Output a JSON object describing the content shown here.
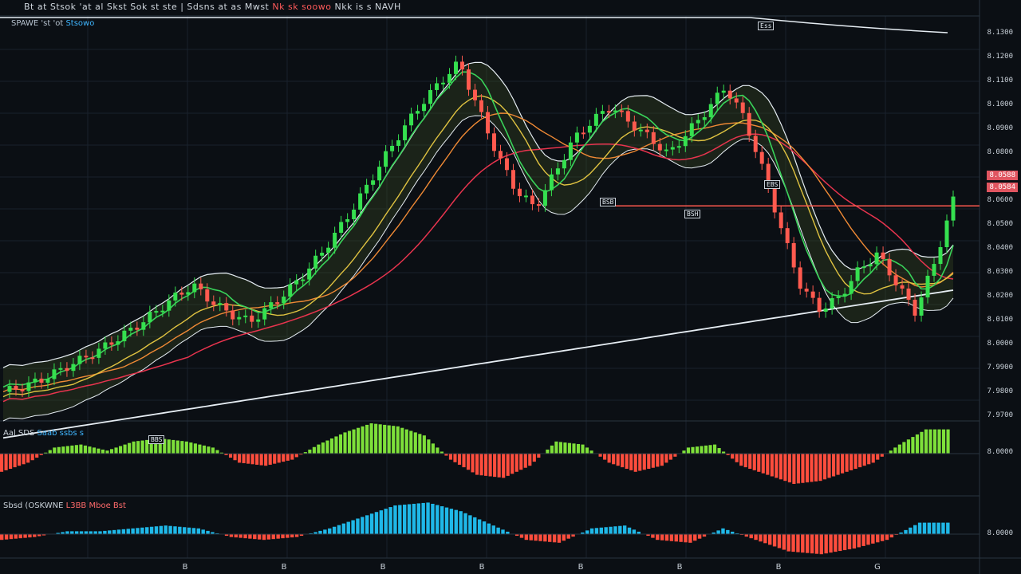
{
  "header": {
    "title_main": "Bt at  Stsok 'at al  Skst  Sok st ste  |  Sdsns at as   Mwst",
    "title_red": "Nk  sk soowo",
    "title_tail": "Nkk is s NAVH"
  },
  "subheader": {
    "left": "SPAWE  'st  'ot",
    "right": "Stsowo"
  },
  "panes": {
    "macd_label": {
      "a": "Aal SDS ",
      "b": "Saab ssbs s"
    },
    "osc_label": {
      "a": "Sbsd (OSKWNE",
      "b": "L3BB",
      "c": "Mboe Bst"
    }
  },
  "price_axis": [
    "8.1300",
    "8.1200",
    "8.1100",
    "8.1000",
    "8.0900",
    "8.0800",
    "8.0700",
    "8.0600",
    "8.0500",
    "8.0400",
    "8.0300",
    "8.0200",
    "8.0100",
    "8.0000",
    "7.9900",
    "7.9800",
    "7.9700"
  ],
  "price_tags": [
    "8.0588",
    "8.0584"
  ],
  "macd_axis": "8.0000",
  "osc_axis": "8.0000",
  "x_axis": [
    "B",
    "B",
    "B",
    "B",
    "B",
    "B",
    "B",
    "G"
  ],
  "notes": [
    "Ess",
    "BSB",
    "BSH",
    "EBS",
    "BBS"
  ],
  "colors": {
    "bg": "#0b0f14",
    "up": "#35e04f",
    "down": "#ff5a4f",
    "ma_red": "#e8344e",
    "ma_yellow": "#e0c341",
    "ma_green": "#39d35a",
    "ma_orange": "#f08a35",
    "line_white": "#e6edf3",
    "hist_cyan": "#1fb8e8",
    "hist_green": "#7ee03a",
    "hist_red": "#ff4d3d"
  },
  "chart_data": {
    "type": "candlestick",
    "title": "",
    "price_lines": [
      8.0588
    ],
    "close": [
      7.982,
      7.984,
      7.987,
      7.991,
      7.995,
      7.999,
      8.004,
      8.009,
      8.015,
      8.021,
      8.026,
      8.019,
      8.014,
      8.011,
      8.017,
      8.024,
      8.032,
      8.042,
      8.053,
      8.065,
      8.078,
      8.09,
      8.101,
      8.11,
      8.118,
      8.099,
      8.08,
      8.065,
      8.058,
      8.072,
      8.086,
      8.094,
      8.1,
      8.093,
      8.087,
      8.08,
      8.089,
      8.098,
      8.108,
      8.095,
      8.073,
      8.048,
      8.025,
      8.016,
      8.021,
      8.032,
      8.039,
      8.027,
      8.015,
      8.035,
      8.061
    ],
    "macd_hist": [
      -0.6,
      -0.3,
      0.2,
      0.3,
      0.1,
      0.4,
      0.5,
      0.4,
      0.2,
      -0.3,
      -0.4,
      -0.2,
      0.3,
      0.7,
      1.0,
      0.9,
      0.6,
      -0.2,
      -0.7,
      -0.8,
      -0.4,
      0.4,
      0.3,
      -0.3,
      -0.6,
      -0.4,
      0.2,
      0.3,
      -0.4,
      -0.7,
      -1.0,
      -0.9,
      -0.6,
      -0.3,
      0.3,
      0.8
    ],
    "osc_hist": [
      -0.2,
      -0.1,
      0.1,
      0.1,
      0.2,
      0.3,
      0.2,
      -0.1,
      -0.2,
      -0.1,
      0.2,
      0.6,
      1.0,
      1.1,
      0.8,
      0.3,
      -0.2,
      -0.3,
      0.2,
      0.3,
      -0.2,
      -0.3,
      0.2,
      -0.2,
      -0.6,
      -0.7,
      -0.5,
      -0.2,
      0.4
    ]
  }
}
